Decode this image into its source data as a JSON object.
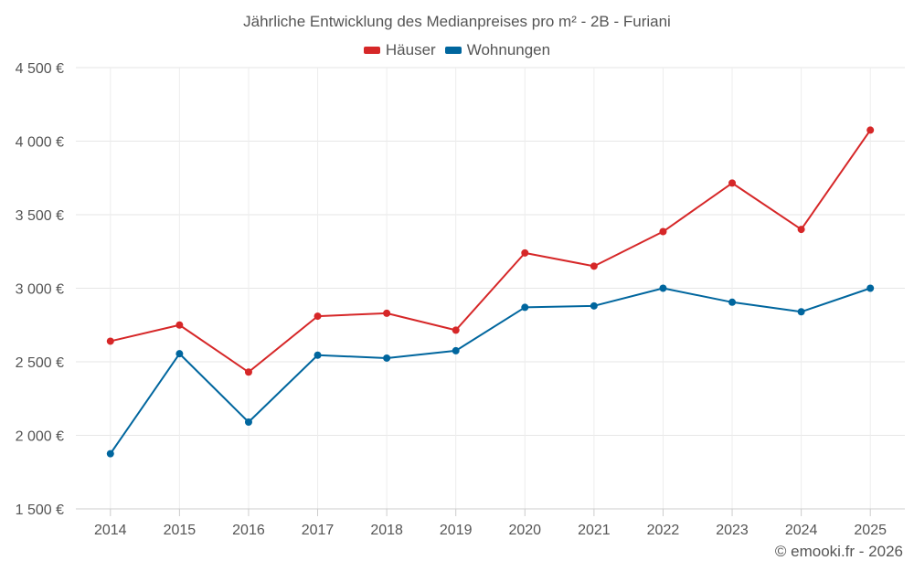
{
  "chart_data": {
    "type": "line",
    "title": "Jährliche Entwicklung des Medianpreises pro m² - 2B - Furiani",
    "categories": [
      "2014",
      "2015",
      "2016",
      "2017",
      "2018",
      "2019",
      "2020",
      "2021",
      "2022",
      "2023",
      "2024",
      "2025"
    ],
    "series": [
      {
        "name": "Häuser",
        "color": "#d62728",
        "values": [
          2640,
          2750,
          2430,
          2810,
          2830,
          2715,
          3240,
          3150,
          3385,
          3715,
          3400,
          4075
        ]
      },
      {
        "name": "Wohnungen",
        "color": "#00669e",
        "values": [
          1875,
          2555,
          2090,
          2545,
          2525,
          2575,
          2870,
          2880,
          3000,
          2905,
          2840,
          3000
        ]
      }
    ],
    "ylim": [
      1500,
      4500
    ],
    "yticks": [
      1500,
      2000,
      2500,
      3000,
      3500,
      4000,
      4500
    ],
    "ytick_labels": [
      "1 500 €",
      "2 000 €",
      "2 500 €",
      "3 000 €",
      "3 500 €",
      "4 000 €",
      "4 500 €"
    ],
    "grid": true,
    "legend_position": "top-center"
  },
  "credit": "© emooki.fr - 2026"
}
